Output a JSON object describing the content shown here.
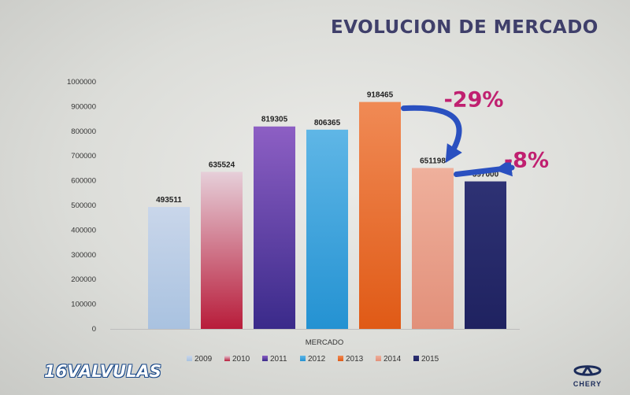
{
  "slide": {
    "title": "EVOLUCION DE MERCADO",
    "logo_left": "16VALVULAS",
    "logo_right": "CHERY"
  },
  "chart_data": {
    "type": "bar",
    "title": "EVOLUCION DE MERCADO",
    "xlabel": "MERCADO",
    "ylabel": "",
    "ylim": [
      0,
      1000000
    ],
    "yticks": [
      "0",
      "100000",
      "200000",
      "300000",
      "400000",
      "500000",
      "600000",
      "700000",
      "800000",
      "900000",
      "1000000"
    ],
    "grid": false,
    "legend_position": "bottom",
    "categories": [
      "MERCADO"
    ],
    "series": [
      {
        "name": "2009",
        "value": 493511,
        "label": "493511",
        "color_top": "#c9d6ea",
        "color_bottom": "#a9c2e0"
      },
      {
        "name": "2010",
        "value": 635524,
        "label": "635524",
        "color_top": "#e6cfd9",
        "color_bottom": "#b81c3a"
      },
      {
        "name": "2011",
        "value": 819305,
        "label": "819305",
        "color_top": "#8d5fc4",
        "color_bottom": "#3a2a8a"
      },
      {
        "name": "2012",
        "value": 806365,
        "label": "806365",
        "color_top": "#5fb6e6",
        "color_bottom": "#2492d2"
      },
      {
        "name": "2013",
        "value": 918465,
        "label": "918465",
        "color_top": "#f08a55",
        "color_bottom": "#e05a16"
      },
      {
        "name": "2014",
        "value": 651198,
        "label": "651198",
        "color_top": "#efb09c",
        "color_bottom": "#e2907a"
      },
      {
        "name": "2015",
        "value": 597000,
        "label": "597000",
        "color_top": "#2e3274",
        "color_bottom": "#1f2260"
      }
    ],
    "annotations": [
      {
        "text": "-29%",
        "from": "2013",
        "to": "2014",
        "color": "#c02070",
        "arrow_color": "#2a50c0"
      },
      {
        "text": "-8%",
        "from": "2014",
        "to": "2015",
        "color": "#c02070",
        "arrow_color": "#2a50c0"
      }
    ]
  }
}
